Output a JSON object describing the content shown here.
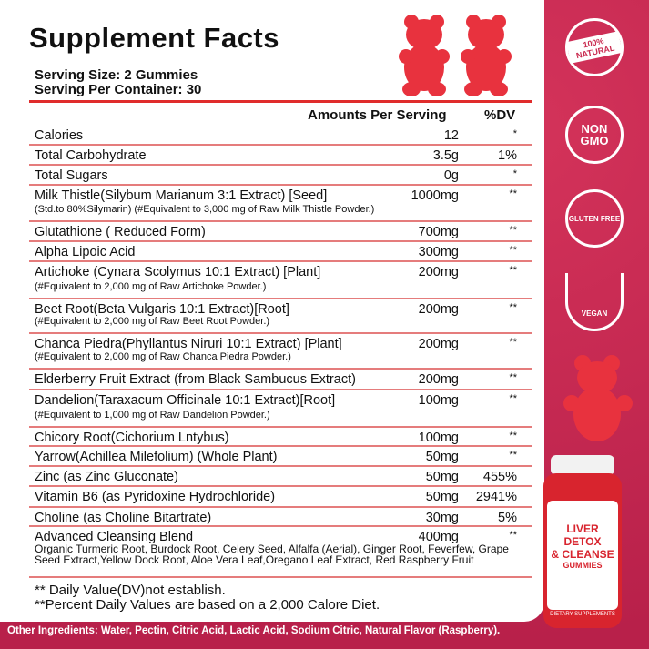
{
  "title": "Supplement Facts",
  "serving_size": "Serving Size: 2 Gummies",
  "servings_per_container": "Serving Per Container: 30",
  "header": {
    "amount": "Amounts Per Serving",
    "dv": "%DV"
  },
  "rows": [
    {
      "name": "Calories",
      "amount": "12",
      "dv": "*"
    },
    {
      "name": "Total Carbohydrate",
      "amount": "3.5g",
      "dv": "1%"
    },
    {
      "name": "Total  Sugars",
      "amount": "0g",
      "dv": "*"
    },
    {
      "name": "Milk Thistle(Silybum Marianum 3:1 Extract) [Seed]",
      "sub": "(Std.to 80%Silymarin) (#Equivalent to 3,000 mg of Raw Milk Thistle Powder.)",
      "amount": "1000mg",
      "dv": "**"
    },
    {
      "name": "Glutathione ( Reduced Form)",
      "amount": "700mg",
      "dv": "**"
    },
    {
      "name": "Alpha Lipoic Acid",
      "amount": "300mg",
      "dv": "**"
    },
    {
      "name": "Artichoke (Cynara Scolymus 10:1 Extract) [Plant]",
      "sub": "(#Equivalent to 2,000 mg of Raw Artichoke Powder.)",
      "amount": "200mg",
      "dv": "**"
    },
    {
      "name": "Beet Root(Beta Vulgaris 10:1 Extract)[Root]",
      "sub": "(#Equivalent to 2,000 mg of Raw Beet Root Powder.)",
      "amount": "200mg",
      "dv": "**"
    },
    {
      "name": "Chanca Piedra(Phyllantus Niruri 10:1 Extract) [Plant]",
      "sub": "(#Equivalent to 2,000 mg of Raw Chanca Piedra Powder.)",
      "amount": "200mg",
      "dv": "**"
    },
    {
      "name": "Elderberry Fruit Extract (from Black Sambucus Extract)",
      "amount": "200mg",
      "dv": "**"
    },
    {
      "name": "Dandelion(Taraxacum Officinale 10:1 Extract)[Root]",
      "sub": "(#Equivalent to 1,000 mg of Raw Dandelion Powder.)",
      "amount": "100mg",
      "dv": "**"
    },
    {
      "name": "Chicory Root(Cichorium Lntybus)",
      "amount": "100mg",
      "dv": "**"
    },
    {
      "name": "Yarrow(Achillea Milefolium) (Whole Plant)",
      "amount": "50mg",
      "dv": "**"
    },
    {
      "name": "Zinc (as Zinc Gluconate)",
      "amount": "50mg",
      "dv": "455%"
    },
    {
      "name": "Vitamin B6 (as Pyridoxine Hydrochloride)",
      "amount": "50mg",
      "dv": "2941%"
    },
    {
      "name": "Choline (as Choline Bitartrate)",
      "amount": "30mg",
      "dv": "5%"
    },
    {
      "name": "Advanced Cleansing Blend",
      "blend": "Organic Turmeric Root, Burdock Root, Celery Seed, Alfalfa (Aerial), Ginger Root, Feverfew, Grape Seed Extract,Yellow Dock Root, Aloe Vera Leaf,Oregano Leaf Extract, Red Raspberry Fruit",
      "amount": "400mg",
      "dv": "**"
    }
  ],
  "footnotes": [
    "** Daily Value(DV)not establish.",
    "**Percent Daily Values are based on a 2,000 Calore Diet."
  ],
  "other_ingredients": "Other Ingredients: Water, Pectin, Citric Acid, Lactic Acid, Sodium Citric, Natural Flavor (Raspberry).",
  "badges": [
    {
      "icon": "natural-stamp-icon",
      "text": "100% NATURAL"
    },
    {
      "icon": "non-gmo-icon",
      "text": "NON GMO"
    },
    {
      "icon": "gluten-free-icon",
      "text": "GLUTEN FREE"
    },
    {
      "icon": "vegan-icon",
      "text": "VEGAN"
    }
  ],
  "product": {
    "line1": "LIVER DETOX",
    "line2": "& CLEANSE",
    "line3": "GUMMIES",
    "footer": "DIETARY SUPPLEMENTS"
  },
  "colors": {
    "accent": "#e02c2c",
    "background": "#c92a4f",
    "gummy": "#e8323e"
  }
}
